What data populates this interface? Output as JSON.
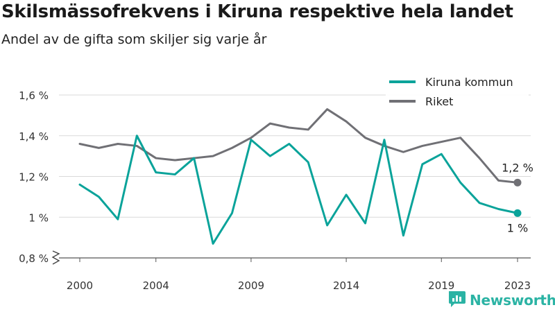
{
  "header": {
    "title": "Skilsmässofrekvens i Kiruna respektive hela landet",
    "subtitle": "Andel av de gifta som skiljer sig varje år"
  },
  "brand": {
    "name": "Newsworthy",
    "icon": "newsworthy-logo-icon",
    "color": "#2bb3a4"
  },
  "chart_data": {
    "type": "line",
    "title": "Skilsmässofrekvens i Kiruna respektive hela landet",
    "subtitle": "Andel av de gifta som skiljer sig varje år",
    "xlabel": "",
    "ylabel": "",
    "x": [
      2000,
      2001,
      2002,
      2003,
      2004,
      2005,
      2006,
      2007,
      2008,
      2009,
      2010,
      2011,
      2012,
      2013,
      2014,
      2015,
      2016,
      2017,
      2018,
      2019,
      2020,
      2021,
      2022,
      2023
    ],
    "x_ticks": [
      "2000",
      "2004",
      "2009",
      "2014",
      "2019",
      "2023"
    ],
    "y_ticks": [
      "0,8 %",
      "1 %",
      "1,2 %",
      "1,4 %",
      "1,6 %"
    ],
    "y_tick_values": [
      0.8,
      1.0,
      1.2,
      1.4,
      1.6
    ],
    "ylim": [
      0.8,
      1.6
    ],
    "grid": true,
    "legend_position": "top-right",
    "series": [
      {
        "name": "Kiruna kommun",
        "color": "#0aa39a",
        "values": [
          1.16,
          1.1,
          0.99,
          1.4,
          1.22,
          1.21,
          1.29,
          0.87,
          1.02,
          1.38,
          1.3,
          1.36,
          1.27,
          0.96,
          1.11,
          0.97,
          1.38,
          0.91,
          1.26,
          1.31,
          1.17,
          1.07,
          1.04,
          1.02
        ],
        "end_label": "1 %"
      },
      {
        "name": "Riket",
        "color": "#707075",
        "values": [
          1.36,
          1.34,
          1.36,
          1.35,
          1.29,
          1.28,
          1.29,
          1.3,
          1.34,
          1.39,
          1.46,
          1.44,
          1.43,
          1.53,
          1.47,
          1.39,
          1.35,
          1.32,
          1.35,
          1.37,
          1.39,
          1.29,
          1.18,
          1.17
        ],
        "end_label": "1,2 %"
      }
    ]
  }
}
